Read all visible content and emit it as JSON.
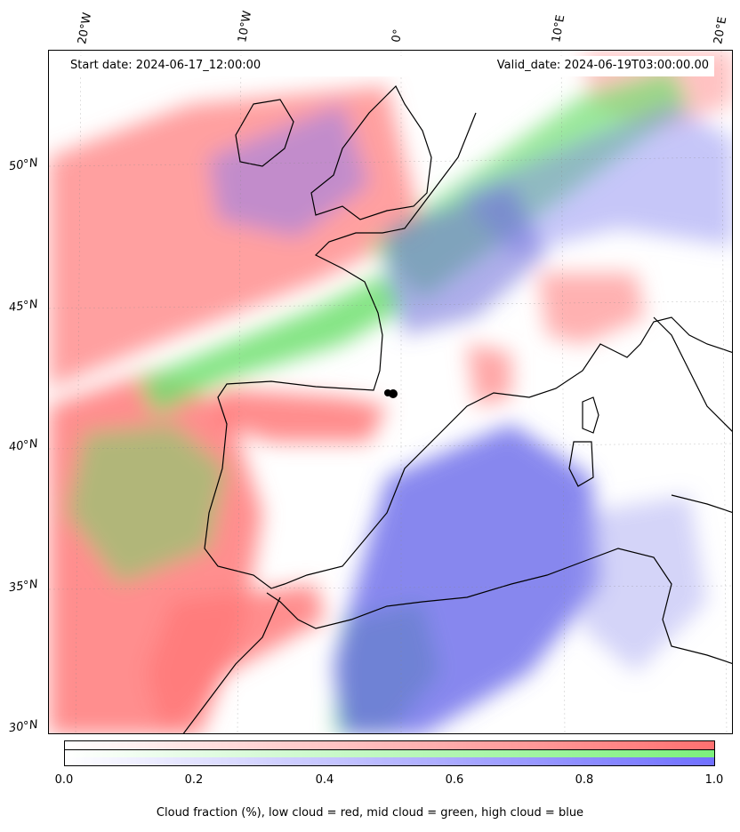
{
  "map": {
    "lon_labels": [
      "20°W",
      "10°W",
      "0°",
      "10°E",
      "20°E"
    ],
    "lat_labels": [
      "50°N",
      "45°N",
      "40°N",
      "35°N",
      "30°N"
    ],
    "start_date": "Start date: 2024-06-17_12:00:00",
    "valid_date": "Valid_date: 2024-06-19T03:00:00.00"
  },
  "colorbar": {
    "ticks": [
      "0.0",
      "0.2",
      "0.4",
      "0.6",
      "0.8",
      "1.0"
    ],
    "min": 0.0,
    "max": 1.0,
    "low_color": "#ff7070",
    "mid_color": "#7cf07c",
    "high_color": "#7070ff",
    "caption": "Cloud fraction (%), low cloud = red, mid cloud = green, high cloud = blue"
  }
}
